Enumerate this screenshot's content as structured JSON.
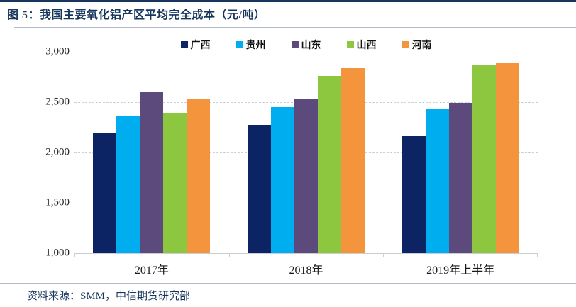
{
  "header": {
    "title": "图 5：我国主要氧化铝产区平均完全成本（元/吨）"
  },
  "footer": {
    "source": "资料来源：SMM，中信期货研究部"
  },
  "colors": {
    "header_text": "#17365D",
    "top_border": "#17365D",
    "divider": "#B3BCCB",
    "gridline": "#CBD0D8",
    "axis_line": "#C9CDD4"
  },
  "chart_data": {
    "type": "bar",
    "title": "我国主要氧化铝产区平均完全成本（元/吨）",
    "categories": [
      "2017年",
      "2018年",
      "2019年上半年"
    ],
    "series": [
      {
        "name": "广西",
        "color": "#0C2463",
        "values": [
          2200,
          2270,
          2160
        ]
      },
      {
        "name": "贵州",
        "color": "#00AEEF",
        "values": [
          2360,
          2450,
          2430
        ]
      },
      {
        "name": "山东",
        "color": "#5D4A7C",
        "values": [
          2600,
          2530,
          2490
        ]
      },
      {
        "name": "山西",
        "color": "#8DC63F",
        "values": [
          2390,
          2760,
          2870
        ]
      },
      {
        "name": "河南",
        "color": "#F4953E",
        "values": [
          2530,
          2840,
          2890
        ]
      }
    ],
    "xlabel": "",
    "ylabel": "",
    "ylim": [
      1000,
      3000
    ],
    "ytick_values": [
      3000,
      2500,
      2000,
      1500,
      1000
    ],
    "yticks": [
      "3,000",
      "2,500",
      "2,000",
      "1,500",
      "1,000"
    ],
    "grid": "horizontal-dashed",
    "legend_position": "top-center"
  }
}
